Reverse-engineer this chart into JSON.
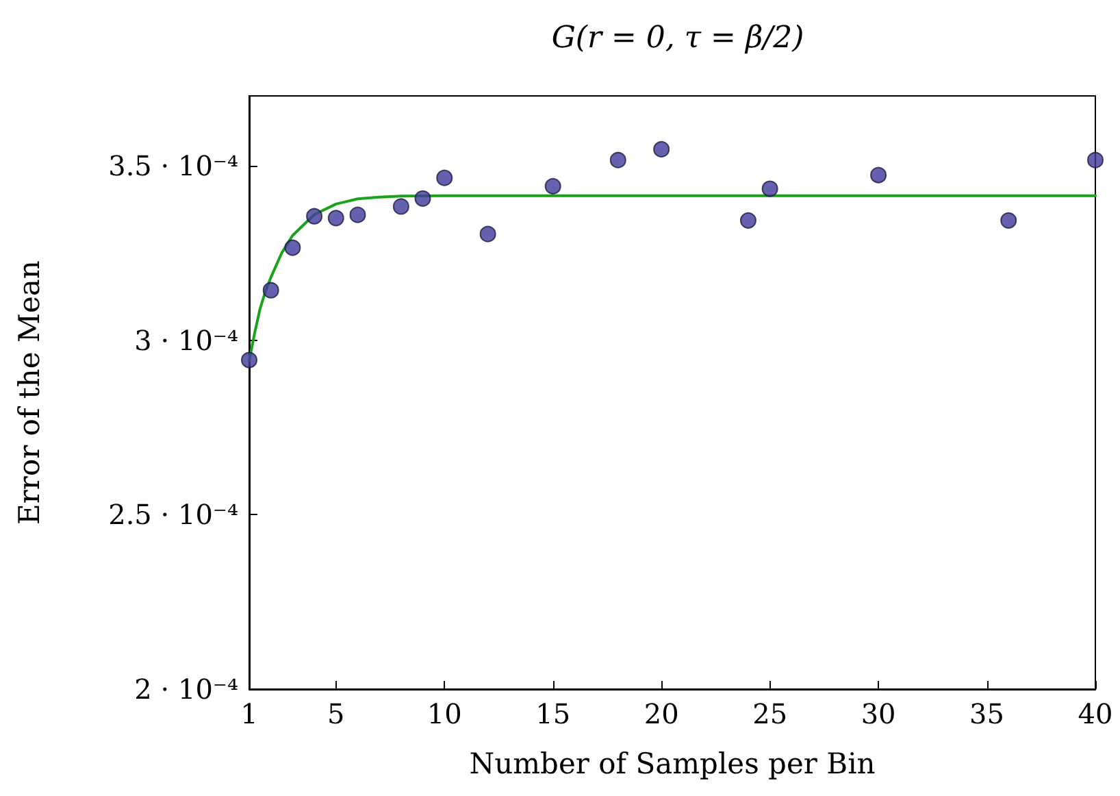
{
  "chart_data": {
    "type": "scatter",
    "title": "G(r = 0, τ = β/2)",
    "xlabel": "Number of Samples per Bin",
    "ylabel": "Error of the Mean",
    "xlim": [
      1,
      40
    ],
    "xticks": [
      1,
      5,
      10,
      15,
      20,
      25,
      30,
      35,
      40
    ],
    "ylim": [
      0.0002,
      0.00037
    ],
    "yticks": [
      {
        "value": 0.0002,
        "label": "2 · 10⁻⁴"
      },
      {
        "value": 0.00025,
        "label": "2.5 · 10⁻⁴"
      },
      {
        "value": 0.0003,
        "label": "3 · 10⁻⁴"
      },
      {
        "value": 0.00035,
        "label": "3.5 · 10⁻⁴"
      }
    ],
    "grid": false,
    "series": [
      {
        "type": "line",
        "color": "#1aa31a",
        "marker": "none",
        "line_style": "solid",
        "x": [
          1,
          1.25,
          1.5,
          1.75,
          2,
          2.5,
          3,
          3.5,
          4,
          5,
          6,
          7,
          8,
          10,
          12,
          15,
          20,
          30,
          40
        ],
        "values": [
          0.000294,
          0.000302,
          0.000309,
          0.000314,
          0.000318,
          0.000325,
          0.00033,
          0.000333,
          0.000336,
          0.000339,
          0.0003405,
          0.000341,
          0.0003413,
          0.0003414,
          0.0003414,
          0.0003414,
          0.0003414,
          0.0003414,
          0.0003414
        ]
      },
      {
        "color": "#3f3a9a",
        "marker": "circle",
        "x": [
          1,
          2,
          3,
          4,
          5,
          6,
          8,
          9,
          10,
          12,
          15,
          18,
          20,
          24,
          25,
          30,
          36,
          40
        ],
        "values": [
          0.0002943,
          0.0003143,
          0.0003265,
          0.0003355,
          0.000335,
          0.0003359,
          0.0003383,
          0.0003406,
          0.0003465,
          0.0003304,
          0.0003441,
          0.0003516,
          0.0003547,
          0.0003343,
          0.0003434,
          0.0003473,
          0.0003343,
          0.0003516
        ]
      }
    ]
  }
}
